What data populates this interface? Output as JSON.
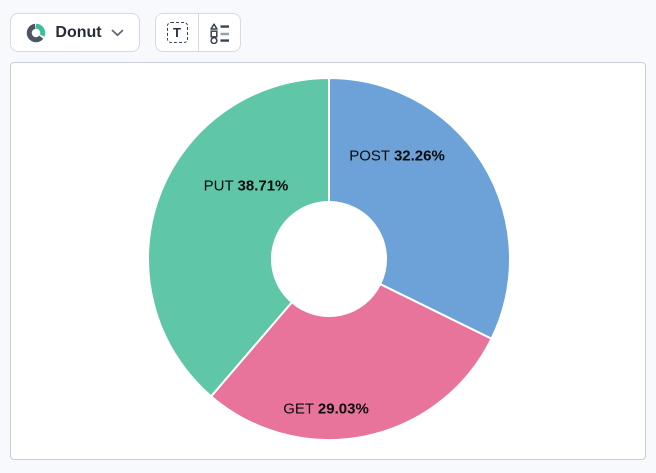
{
  "toolbar": {
    "chart_type_dropdown": {
      "label": "Donut",
      "icons": {
        "type_icon": "donut-chart-icon",
        "caret": "chevron-down-icon"
      }
    },
    "buttons": [
      {
        "name": "text-annotation-button",
        "icon": "text-selection-icon",
        "glyph": "T"
      },
      {
        "name": "legend-button",
        "icon": "shape-legend-icon"
      }
    ]
  },
  "colors": {
    "background": "#F8F9FC",
    "panel_bg": "#FFFFFF",
    "panel_border": "#C9CEDA",
    "button_border": "#D6DAE3",
    "icon_dark": "#4D5464",
    "icon_accent_green": "#3CBD9C",
    "label_text": "#0B0B0B"
  },
  "chart_data": {
    "type": "pie",
    "subtype": "donut",
    "title": "",
    "unit": "%",
    "start_angle_deg": 0,
    "direction": "clockwise",
    "inner_radius_ratio": 0.315,
    "slice_border_color": "#FFFFFF",
    "legend": "none",
    "slices": [
      {
        "label": "POST",
        "value": 32.26,
        "pct": "32.26%",
        "color": "#6CA2D8"
      },
      {
        "label": "GET",
        "value": 29.03,
        "pct": "29.03%",
        "color": "#E8739B"
      },
      {
        "label": "PUT",
        "value": 38.71,
        "pct": "38.71%",
        "color": "#5FC6A7"
      }
    ]
  }
}
